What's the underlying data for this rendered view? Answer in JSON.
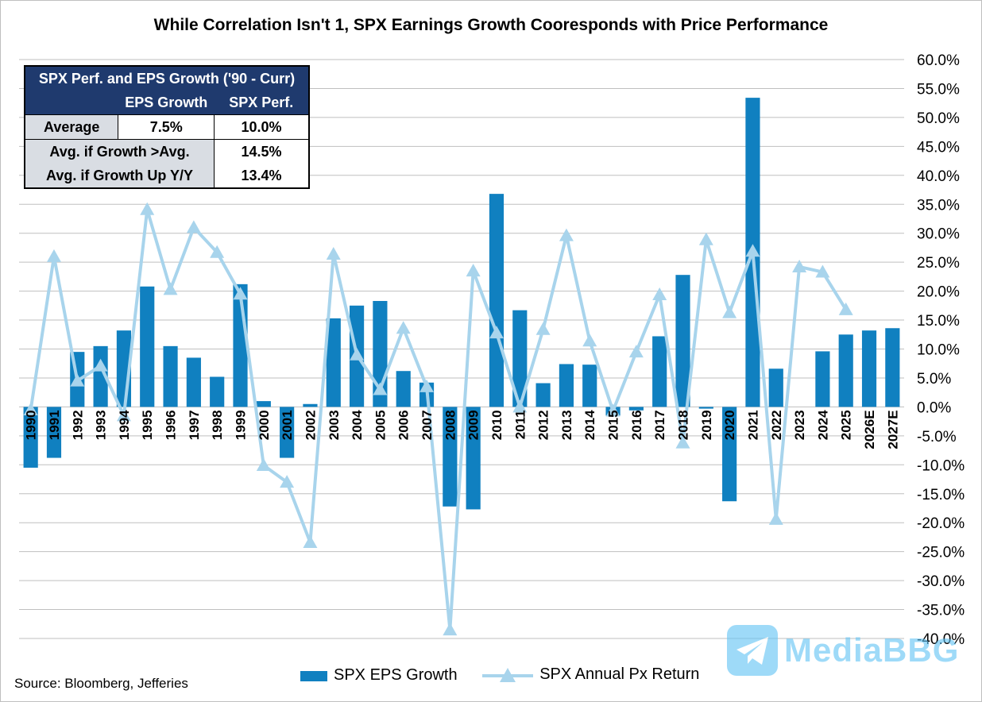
{
  "chart_data": {
    "type": "bar",
    "title": "While Correlation Isn't 1, SPX Earnings Growth Cooresponds with Price Performance",
    "categories": [
      "1990",
      "1991",
      "1992",
      "1993",
      "1994",
      "1995",
      "1996",
      "1997",
      "1998",
      "1999",
      "2000",
      "2001",
      "2002",
      "2003",
      "2004",
      "2005",
      "2006",
      "2007",
      "2008",
      "2009",
      "2010",
      "2011",
      "2012",
      "2013",
      "2014",
      "2015",
      "2016",
      "2017",
      "2018",
      "2019",
      "2020",
      "2021",
      "2022",
      "2023",
      "2024",
      "2025",
      "2026E",
      "2027E"
    ],
    "series": [
      {
        "name": "SPX EPS Growth",
        "kind": "bar",
        "color": "#1080c0",
        "values": [
          -10.5,
          -8.8,
          9.5,
          10.5,
          13.2,
          20.8,
          10.5,
          8.5,
          5.2,
          21.2,
          1.0,
          -8.8,
          0.5,
          15.3,
          17.5,
          18.3,
          6.2,
          4.2,
          -17.2,
          -17.7,
          36.8,
          16.7,
          4.1,
          7.4,
          7.3,
          -1.5,
          -0.6,
          12.2,
          22.8,
          -0.3,
          -16.3,
          53.4,
          6.6,
          0.0,
          9.6,
          12.5,
          13.2,
          13.6
        ]
      },
      {
        "name": "SPX Annual Px Return",
        "kind": "line",
        "color": "#a8d4ec",
        "values": [
          -0.5,
          26.0,
          4.5,
          7.1,
          -1.5,
          34.1,
          20.3,
          31.0,
          26.7,
          19.5,
          -10.1,
          -13.0,
          -23.4,
          26.4,
          9.0,
          3.0,
          13.6,
          3.5,
          -38.5,
          23.5,
          12.8,
          0.0,
          13.4,
          29.6,
          11.4,
          -0.7,
          9.5,
          19.4,
          -6.2,
          28.9,
          16.3,
          26.9,
          -19.4,
          24.2,
          23.3,
          16.8,
          null,
          null
        ]
      }
    ],
    "ylim": [
      -40,
      60
    ],
    "yticks": [
      "60.0%",
      "55.0%",
      "50.0%",
      "45.0%",
      "40.0%",
      "35.0%",
      "30.0%",
      "25.0%",
      "20.0%",
      "15.0%",
      "10.0%",
      "5.0%",
      "0.0%",
      "-5.0%",
      "-10.0%",
      "-15.0%",
      "-20.0%",
      "-25.0%",
      "-30.0%",
      "-35.0%",
      "-40.0%"
    ],
    "xlabel": "",
    "ylabel": "",
    "grid": true,
    "legend": "bottom"
  },
  "table": {
    "title": "SPX Perf. and EPS Growth ('90 - Curr)",
    "col1": "EPS Growth",
    "col2": "SPX Perf.",
    "rows": [
      {
        "label": "Average",
        "eps": "7.5%",
        "spx": "10.0%"
      },
      {
        "label": "Avg. if Growth >Avg.",
        "spx": "14.5%"
      },
      {
        "label": "Avg. if Growth Up Y/Y",
        "spx": "13.4%"
      }
    ]
  },
  "legend": {
    "bar_label": "SPX EPS Growth",
    "line_label": "SPX Annual Px Return"
  },
  "source": "Source: Bloomberg, Jefferies",
  "watermark": "MediaBBG"
}
